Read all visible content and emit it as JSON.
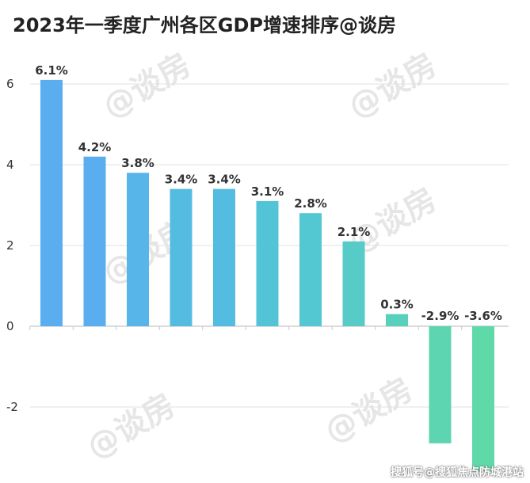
{
  "chart_data": {
    "type": "bar",
    "title": "2023年一季度广州各区GDP增速排序@谈房",
    "xlabel": "",
    "ylabel": "",
    "categories": [
      "",
      "",
      "",
      "",
      "",
      "",
      "",
      "",
      "",
      "",
      ""
    ],
    "values": [
      6.1,
      4.2,
      3.8,
      3.4,
      3.4,
      3.1,
      2.8,
      2.1,
      0.3,
      -2.9,
      -3.6
    ],
    "data_labels": [
      "6.1%",
      "4.2%",
      "3.8%",
      "3.4%",
      "3.4%",
      "3.1%",
      "2.8%",
      "2.1%",
      "0.3%",
      "-2.9%",
      "-3.6%"
    ],
    "yticks": [
      -2,
      0,
      2,
      4,
      6
    ],
    "ylim": [
      -3.6,
      6.6
    ],
    "grid": true,
    "colors": [
      "#5aaef0",
      "#5aaef0",
      "#57b5ea",
      "#54bce0",
      "#54bce0",
      "#53c4d8",
      "#54c8d2",
      "#56cbc8",
      "#59d0bc",
      "#5cd5b0",
      "#5fd9a8"
    ]
  },
  "watermark": "@谈房",
  "credit": "搜狐号@搜狐焦点防城港站"
}
